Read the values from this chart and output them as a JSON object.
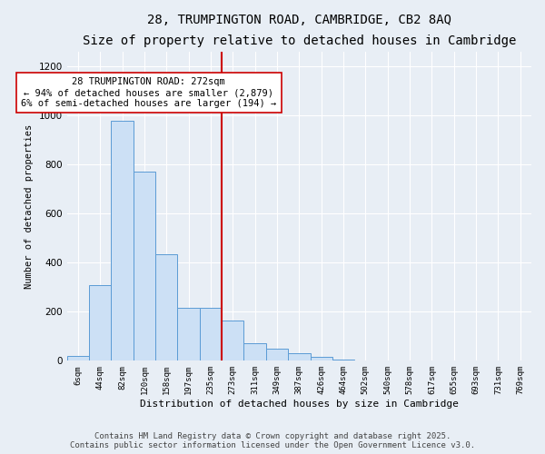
{
  "title": "28, TRUMPINGTON ROAD, CAMBRIDGE, CB2 8AQ",
  "subtitle": "Size of property relative to detached houses in Cambridge",
  "xlabel": "Distribution of detached houses by size in Cambridge",
  "ylabel": "Number of detached properties",
  "bin_labels": [
    "6sqm",
    "44sqm",
    "82sqm",
    "120sqm",
    "158sqm",
    "197sqm",
    "235sqm",
    "273sqm",
    "311sqm",
    "349sqm",
    "387sqm",
    "426sqm",
    "464sqm",
    "502sqm",
    "540sqm",
    "578sqm",
    "617sqm",
    "655sqm",
    "693sqm",
    "731sqm",
    "769sqm"
  ],
  "bar_values": [
    20,
    310,
    980,
    770,
    435,
    215,
    215,
    165,
    70,
    48,
    32,
    15,
    5,
    2,
    1,
    0,
    0,
    0,
    0,
    0,
    3
  ],
  "bar_color": "#cce0f5",
  "bar_edge_color": "#5b9bd5",
  "vline_color": "#cc0000",
  "annotation_text": "28 TRUMPINGTON ROAD: 272sqm\n← 94% of detached houses are smaller (2,879)\n6% of semi-detached houses are larger (194) →",
  "annotation_box_color": "#ffffff",
  "annotation_box_edge_color": "#cc0000",
  "ylim": [
    0,
    1260
  ],
  "yticks": [
    0,
    200,
    400,
    600,
    800,
    1000,
    1200
  ],
  "background_color": "#e8eef5",
  "grid_color": "#ffffff",
  "footer_line1": "Contains HM Land Registry data © Crown copyright and database right 2025.",
  "footer_line2": "Contains public sector information licensed under the Open Government Licence v3.0.",
  "title_fontsize": 10,
  "subtitle_fontsize": 9,
  "annotation_fontsize": 7.5,
  "footer_fontsize": 6.5,
  "ylabel_fontsize": 7.5,
  "xlabel_fontsize": 8
}
